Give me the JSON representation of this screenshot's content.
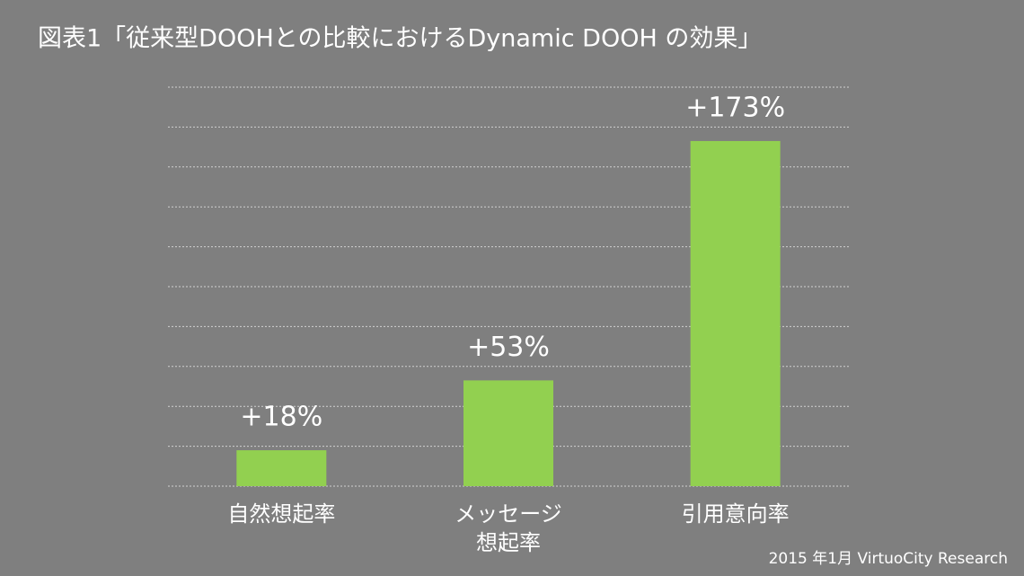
{
  "chart_data": {
    "type": "bar",
    "title": "図表1「従来型DOOHとの比較におけるDynamic DOOH の効果」",
    "source": "2015 年1月 VirtuoCity Research",
    "categories": [
      "自然想起率",
      "メッセージ\n想起率",
      "引用意向率"
    ],
    "values": [
      18,
      53,
      173
    ],
    "value_labels": [
      "+18%",
      "+53%",
      "+173%"
    ],
    "color": "#92d050",
    "ylim": [
      0,
      200
    ],
    "yticks": [
      0,
      20,
      40,
      60,
      80,
      100,
      120,
      140,
      160,
      180,
      200
    ],
    "grid": true
  }
}
